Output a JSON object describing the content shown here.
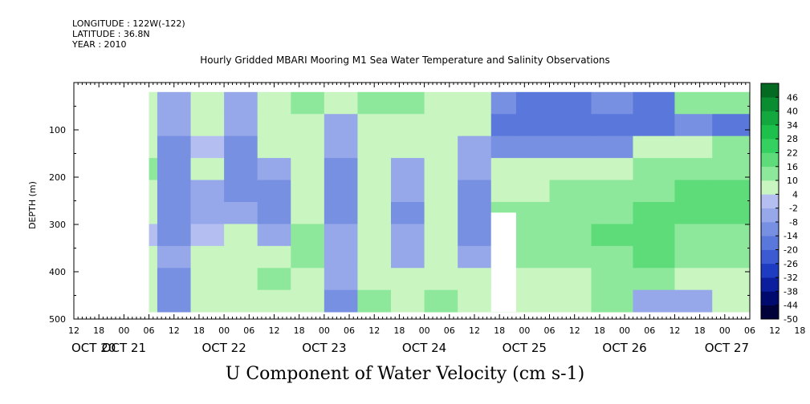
{
  "header": {
    "longitude": "LONGITUDE : 122W(-122)",
    "latitude": "LATITUDE : 36.8N",
    "year": "YEAR : 2010"
  },
  "chart_data": {
    "type": "heatmap",
    "title": "Hourly Gridded MBARI Mooring M1 Sea Water Temperature and Salinity Observations",
    "xlabel": "U Component of Water Velocity (cm s-1)",
    "ylabel": "DEPTH (m)",
    "ylim": [
      500,
      0
    ],
    "y_ticks": [
      100,
      200,
      300,
      400,
      500
    ],
    "y_tick_labels": [
      "100",
      "200",
      "300",
      "400",
      "500"
    ],
    "x_range_hours": [
      0,
      162
    ],
    "x_hour_labels": [
      "12",
      "18",
      "00",
      "06",
      "12",
      "18",
      "00",
      "06",
      "12",
      "18",
      "00",
      "06",
      "12",
      "18",
      "00",
      "06",
      "12",
      "18",
      "00",
      "06",
      "12",
      "18",
      "00",
      "06",
      "12",
      "18",
      "00",
      "06",
      "12",
      "18",
      "00",
      "06"
    ],
    "x_day_labels": [
      "OCT 20",
      "OCT 21",
      "OCT 22",
      "OCT 23",
      "OCT 24",
      "OCT 25",
      "OCT 26",
      "OCT 27"
    ],
    "data_depth_range": [
      20,
      485
    ],
    "data_time_start": 18,
    "colorbar": {
      "levels": [
        -50,
        -44,
        -38,
        -32,
        -26,
        -20,
        -14,
        -8,
        -2,
        4,
        10,
        16,
        22,
        28,
        34,
        40,
        46,
        50
      ],
      "labels": [
        "46",
        "40",
        "34",
        "28",
        "22",
        "16",
        "10",
        "4",
        "-2",
        "-8",
        "-14",
        "-20",
        "-26",
        "-32",
        "-38",
        "-44",
        "-50"
      ],
      "colors": [
        "#00003a",
        "#000a6e",
        "#0a1e9e",
        "#1e3cc2",
        "#3c5ad2",
        "#5a78dc",
        "#7890e2",
        "#96a8ea",
        "#b4bef0",
        "#c8f5c0",
        "#8ee89c",
        "#5edc7a",
        "#34d060",
        "#1ec04c",
        "#12a83e",
        "#0a8c30",
        "#046a22"
      ]
    },
    "segments": [
      {
        "col_start": 0,
        "col_end": 7,
        "values": [
          -10,
          -8,
          -6,
          6,
          6,
          -4,
          -6,
          -8,
          -10,
          -12
        ]
      },
      {
        "col_start": 7,
        "col_end": 13,
        "values": [
          -18,
          -14,
          -12,
          -10,
          -8,
          -8,
          -8,
          -10,
          -10,
          -8
        ]
      },
      {
        "col_start": 13,
        "col_end": 20,
        "values": [
          4,
          6,
          8,
          10,
          6,
          4,
          2,
          4,
          6,
          8
        ]
      },
      {
        "col_start": 20,
        "col_end": 28,
        "values": [
          -4,
          -8,
          -10,
          -12,
          -14,
          -12,
          -10,
          -8,
          -10,
          -12
        ]
      },
      {
        "col_start": 28,
        "col_end": 36,
        "values": [
          6,
          4,
          2,
          4,
          -4,
          -6,
          -2,
          4,
          6,
          4
        ]
      },
      {
        "col_start": 36,
        "col_end": 44,
        "values": [
          -6,
          -8,
          -10,
          -12,
          -10,
          -8,
          4,
          6,
          8,
          6
        ]
      },
      {
        "col_start": 44,
        "col_end": 52,
        "values": [
          4,
          6,
          8,
          -8,
          -10,
          -12,
          -8,
          6,
          10,
          8
        ]
      },
      {
        "col_start": 52,
        "col_end": 60,
        "values": [
          10,
          8,
          6,
          4,
          6,
          8,
          10,
          12,
          8,
          6
        ]
      },
      {
        "col_start": 60,
        "col_end": 68,
        "values": [
          4,
          -4,
          -8,
          -10,
          -12,
          -10,
          -8,
          -6,
          -8,
          -10
        ]
      },
      {
        "col_start": 68,
        "col_end": 76,
        "values": [
          12,
          8,
          6,
          4,
          6,
          8,
          4,
          6,
          8,
          10
        ]
      },
      {
        "col_start": 76,
        "col_end": 84,
        "values": [
          14,
          6,
          4,
          -4,
          -8,
          -10,
          -8,
          -6,
          4,
          6
        ]
      },
      {
        "col_start": 84,
        "col_end": 92,
        "values": [
          8,
          6,
          4,
          6,
          8,
          6,
          4,
          6,
          8,
          10
        ]
      },
      {
        "col_start": 92,
        "col_end": 100,
        "values": [
          6,
          4,
          -6,
          -8,
          -10,
          -12,
          -10,
          -8,
          4,
          6
        ]
      },
      {
        "col_start": 100,
        "col_end": 106,
        "values": [
          -14,
          -16,
          -10,
          4,
          8,
          10,
          12,
          14,
          10,
          8
        ]
      },
      {
        "col_start": 106,
        "col_end": 114,
        "values": [
          -16,
          -18,
          -10,
          6,
          8,
          10,
          12,
          10,
          8,
          6
        ]
      },
      {
        "col_start": 114,
        "col_end": 124,
        "values": [
          -20,
          -16,
          -10,
          6,
          10,
          14,
          12,
          10,
          8,
          6
        ]
      },
      {
        "col_start": 124,
        "col_end": 134,
        "values": [
          -14,
          -16,
          -12,
          8,
          12,
          14,
          16,
          14,
          12,
          10
        ]
      },
      {
        "col_start": 134,
        "col_end": 144,
        "values": [
          -18,
          -20,
          6,
          10,
          14,
          16,
          18,
          16,
          12,
          -8
        ]
      },
      {
        "col_start": 144,
        "col_end": 153,
        "values": [
          10,
          -14,
          6,
          12,
          16,
          18,
          14,
          10,
          8,
          -8
        ]
      },
      {
        "col_start": 153,
        "col_end": 162,
        "values": [
          14,
          -16,
          10,
          14,
          18,
          16,
          12,
          10,
          8,
          6
        ]
      }
    ],
    "missing_region": {
      "hour_start": 100,
      "hour_end": 106,
      "depth_start": 275,
      "depth_end": 485
    }
  }
}
